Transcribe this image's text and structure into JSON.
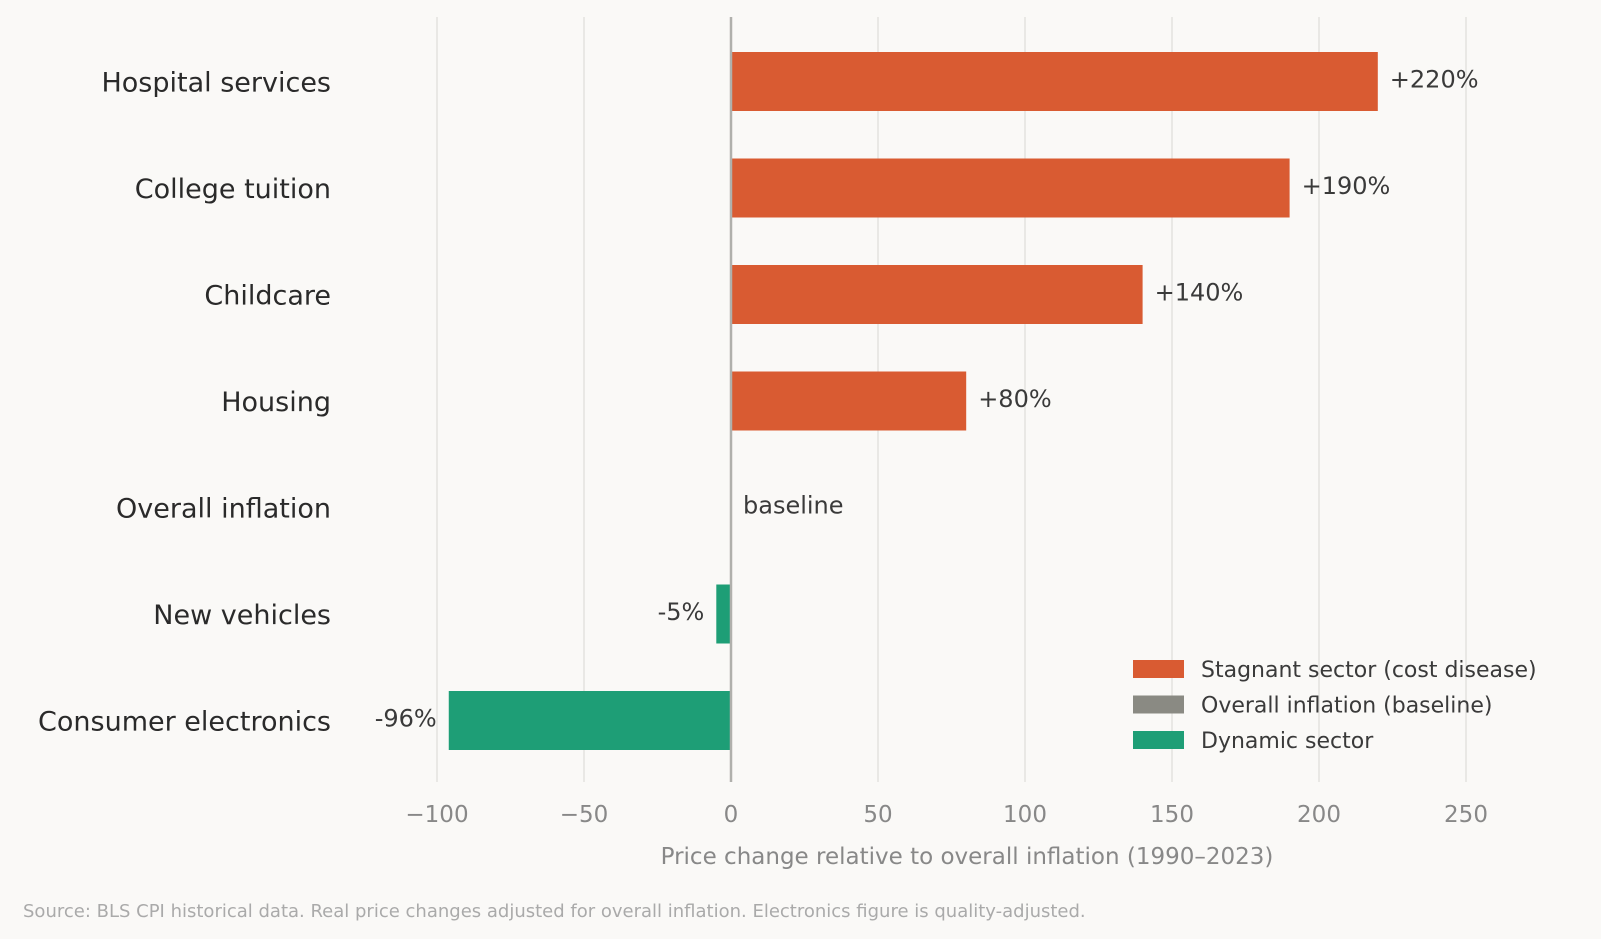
{
  "chart_data": {
    "type": "bar",
    "orientation": "horizontal",
    "categories": [
      "Hospital services",
      "College tuition",
      "Childcare",
      "Housing",
      "Overall inflation",
      "New vehicles",
      "Consumer electronics"
    ],
    "values": [
      220,
      190,
      140,
      80,
      0,
      -5,
      -96
    ],
    "value_labels": [
      "+220%",
      "+190%",
      "+140%",
      "+80%",
      "baseline",
      "-5%",
      "-96%"
    ],
    "groups": [
      "stagnant",
      "stagnant",
      "stagnant",
      "stagnant",
      "baseline",
      "dynamic",
      "dynamic"
    ],
    "xlabel": "Price change relative to overall inflation (1990–2023)",
    "xlim": [
      -100,
      250
    ],
    "xticks": [
      -100,
      -50,
      0,
      50,
      100,
      150,
      200,
      250
    ],
    "xtick_labels": [
      "−100",
      "−50",
      "0",
      "50",
      "100",
      "150",
      "200",
      "250"
    ],
    "grid": "vertical",
    "legend": {
      "placement": "bottom-right",
      "entries": [
        {
          "label": "Stagnant sector (cost disease)",
          "group": "stagnant",
          "color": "#d95b32"
        },
        {
          "label": "Overall inflation (baseline)",
          "group": "baseline",
          "color": "#8a8a83"
        },
        {
          "label": "Dynamic sector",
          "group": "dynamic",
          "color": "#1e9e76"
        }
      ]
    },
    "colors": {
      "stagnant": "#d95b32",
      "baseline": "#8a8a83",
      "dynamic": "#1e9e76"
    },
    "source": "Source: BLS CPI historical data. Real price changes adjusted for overall inflation. Electronics figure is quality-adjusted."
  }
}
